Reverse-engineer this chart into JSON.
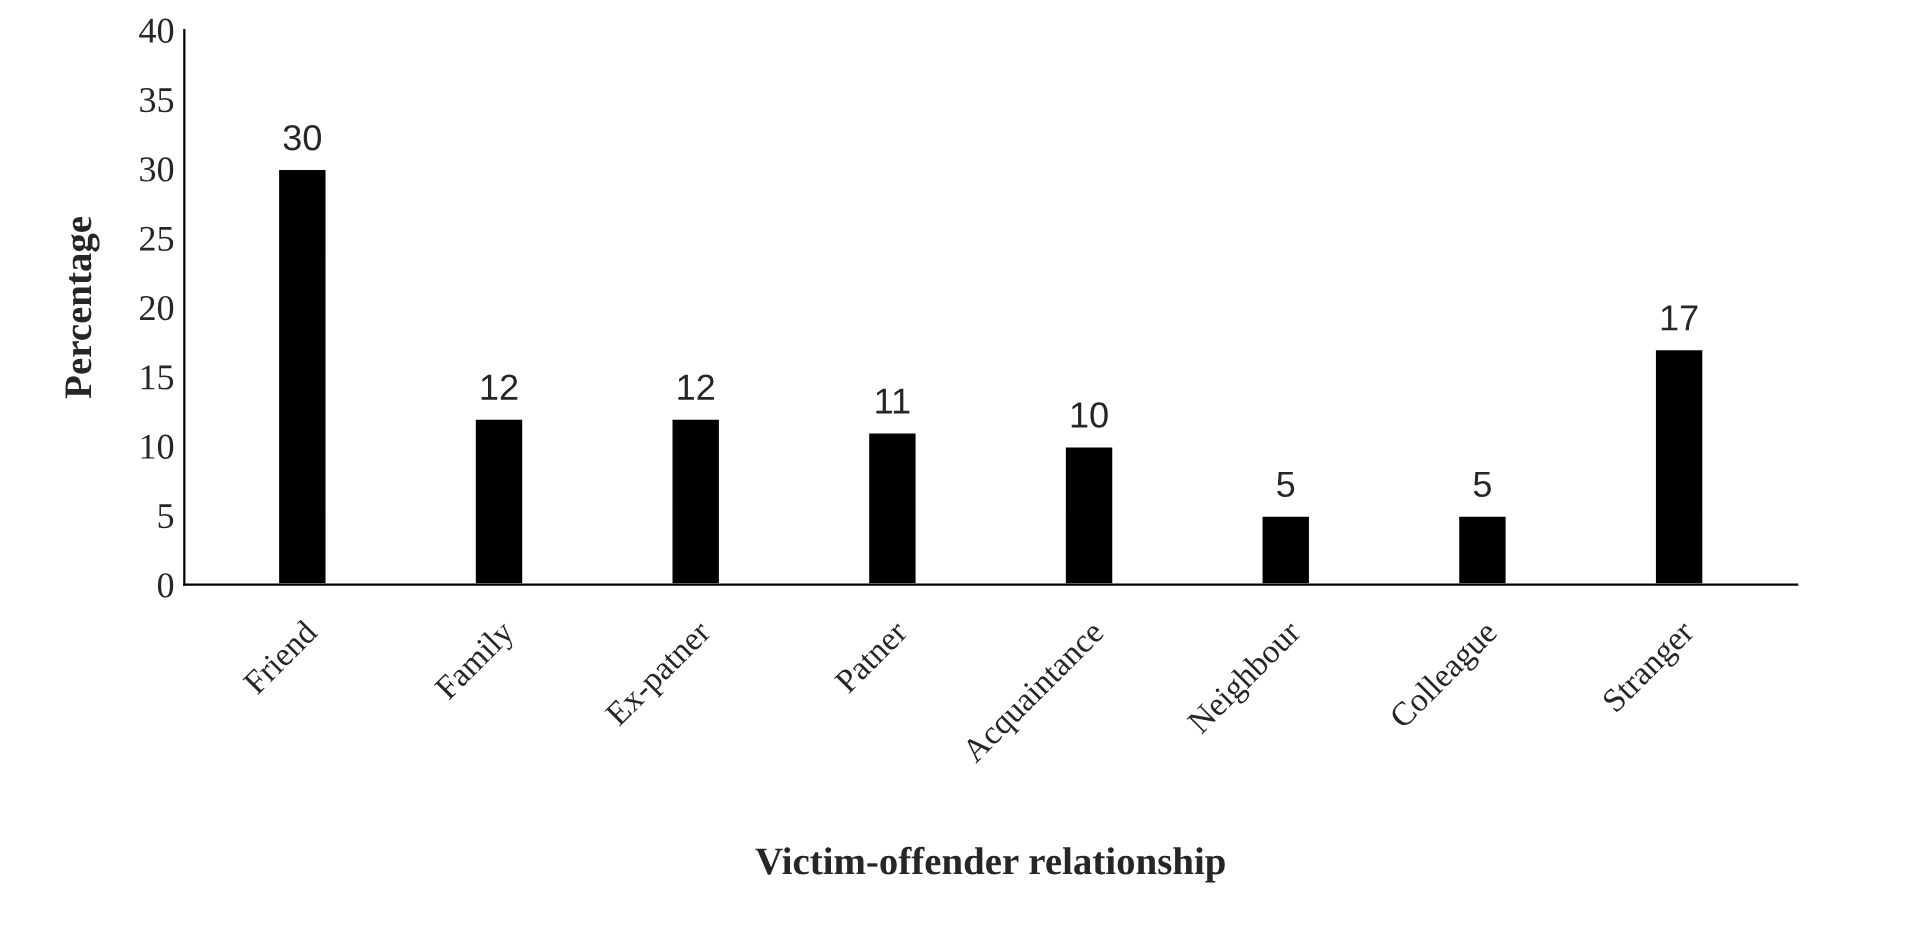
{
  "chart_data": {
    "type": "bar",
    "xlabel": "Victim-offender relationship",
    "ylabel": "Percentage",
    "categories": [
      "Friend",
      "Family",
      "Ex-patner",
      "Patner",
      "Acquaintance",
      "Neighbour",
      "Colleague",
      "Stranger"
    ],
    "values": [
      30,
      12,
      12,
      11,
      10,
      5,
      5,
      17
    ],
    "color": "#000000",
    "ylim": [
      0,
      40
    ],
    "yticks": [
      0,
      5,
      10,
      15,
      20,
      25,
      30,
      35,
      40
    ],
    "data_labels": true,
    "grid": false,
    "legend": false
  }
}
